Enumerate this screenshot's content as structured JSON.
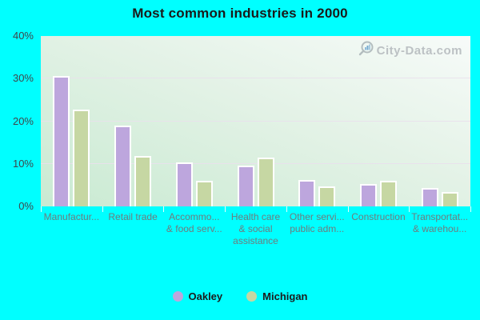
{
  "title": "Most common industries in 2000",
  "watermark": {
    "text": "City-Data.com",
    "icon": "magnifier-bar-chart-icon"
  },
  "legend": [
    {
      "label": "Oakley",
      "color": "#bda6dd"
    },
    {
      "label": "Michigan",
      "color": "#c6d7a3"
    }
  ],
  "colors": {
    "page_background": "#00ffff",
    "plot_gradient_top_right": "#f7fbf9",
    "plot_gradient_bottom_left": "#c9ead2",
    "gridline": "#e9e0ec",
    "y_axis_label": "#3f464b",
    "category_label": "#6f7b7d",
    "bar_border": "#ffffff",
    "oakley_bar": "#bda6dd",
    "michigan_bar": "#c6d7a3",
    "watermark_text": "#b3b8bc"
  },
  "chart_data": {
    "type": "bar",
    "title": "Most common industries in 2000",
    "xlabel": "",
    "ylabel": "",
    "ylim": [
      0,
      40
    ],
    "yticks": [
      "40%",
      "30%",
      "20%",
      "10%",
      "0%"
    ],
    "grid": true,
    "legend_position": "bottom",
    "categories_display": [
      [
        "Manufactur..."
      ],
      [
        "Retail trade"
      ],
      [
        "Accommo...",
        "& food serv..."
      ],
      [
        "Health care",
        "& social",
        "assistance"
      ],
      [
        "Other servi...",
        "public adm..."
      ],
      [
        "Construction"
      ],
      [
        "Transportat...",
        "& warehou..."
      ]
    ],
    "series": [
      {
        "name": "Oakley",
        "color": "#bda6dd",
        "values": [
          30.2,
          18.6,
          9.9,
          9.2,
          5.9,
          4.8,
          4.0
        ]
      },
      {
        "name": "Michigan",
        "color": "#c6d7a3",
        "values": [
          22.3,
          11.5,
          5.7,
          11.1,
          4.3,
          5.7,
          3.1
        ]
      }
    ]
  }
}
